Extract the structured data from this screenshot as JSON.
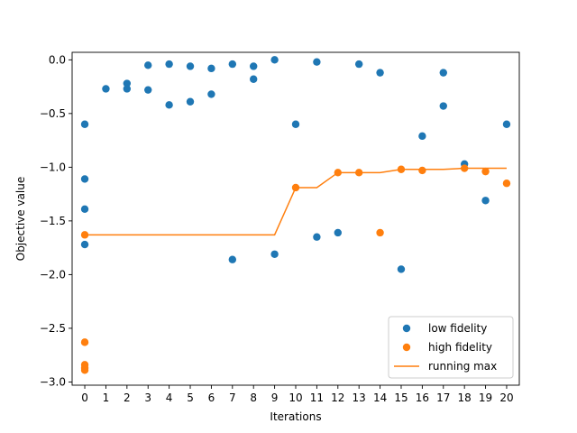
{
  "chart_data": {
    "type": "scatter",
    "xlabel": "Iterations",
    "ylabel": "Objective value",
    "xlim": [
      -0.6,
      20.6
    ],
    "ylim": [
      -3.03,
      0.07
    ],
    "xticks": [
      "0",
      "1",
      "2",
      "3",
      "4",
      "5",
      "6",
      "7",
      "8",
      "9",
      "10",
      "11",
      "12",
      "13",
      "14",
      "15",
      "16",
      "17",
      "18",
      "19",
      "20"
    ],
    "yticks": [
      {
        "value": 0.0,
        "label": "0.0"
      },
      {
        "value": -0.5,
        "label": "−0.5"
      },
      {
        "value": -1.0,
        "label": "−1.0"
      },
      {
        "value": -1.5,
        "label": "−1.5"
      },
      {
        "value": -2.0,
        "label": "−2.0"
      },
      {
        "value": -2.5,
        "label": "−2.5"
      },
      {
        "value": -3.0,
        "label": "−3.0"
      }
    ],
    "grid": false,
    "legend_position": "lower-right",
    "series": [
      {
        "name": "low fidelity",
        "kind": "scatter",
        "color": "#1f77b4",
        "points": [
          [
            0,
            -0.6
          ],
          [
            0,
            -1.11
          ],
          [
            0,
            -1.39
          ],
          [
            0,
            -1.72
          ],
          [
            1,
            -0.27
          ],
          [
            2,
            -0.22
          ],
          [
            2,
            -0.27
          ],
          [
            3,
            -0.05
          ],
          [
            3,
            -0.28
          ],
          [
            4,
            -0.04
          ],
          [
            4,
            -0.42
          ],
          [
            5,
            -0.06
          ],
          [
            5,
            -0.39
          ],
          [
            6,
            -0.08
          ],
          [
            6,
            -0.32
          ],
          [
            7,
            -0.04
          ],
          [
            7,
            -1.86
          ],
          [
            8,
            -0.06
          ],
          [
            8,
            -0.18
          ],
          [
            9,
            0.0
          ],
          [
            9,
            -1.81
          ],
          [
            10,
            -0.6
          ],
          [
            11,
            -0.02
          ],
          [
            11,
            -1.65
          ],
          [
            12,
            -1.61
          ],
          [
            13,
            -0.04
          ],
          [
            14,
            -0.12
          ],
          [
            15,
            -1.95
          ],
          [
            16,
            -0.71
          ],
          [
            17,
            -0.12
          ],
          [
            17,
            -0.43
          ],
          [
            18,
            -0.97
          ],
          [
            19,
            -1.31
          ],
          [
            20,
            -0.6
          ]
        ]
      },
      {
        "name": "high fidelity",
        "kind": "scatter",
        "color": "#ff7f0e",
        "points": [
          [
            0,
            -1.63
          ],
          [
            0,
            -2.63
          ],
          [
            0,
            -2.84
          ],
          [
            0,
            -2.87
          ],
          [
            0,
            -2.89
          ],
          [
            10,
            -1.19
          ],
          [
            12,
            -1.05
          ],
          [
            13,
            -1.05
          ],
          [
            14,
            -1.61
          ],
          [
            15,
            -1.02
          ],
          [
            16,
            -1.03
          ],
          [
            18,
            -1.01
          ],
          [
            19,
            -1.04
          ],
          [
            20,
            -1.15
          ]
        ]
      },
      {
        "name": "running max",
        "kind": "line",
        "color": "#ff7f0e",
        "points": [
          [
            0,
            -1.63
          ],
          [
            9,
            -1.63
          ],
          [
            10,
            -1.19
          ],
          [
            11,
            -1.19
          ],
          [
            12,
            -1.05
          ],
          [
            13,
            -1.05
          ],
          [
            14,
            -1.05
          ],
          [
            15,
            -1.02
          ],
          [
            16,
            -1.02
          ],
          [
            17,
            -1.02
          ],
          [
            18,
            -1.01
          ],
          [
            19,
            -1.01
          ],
          [
            20,
            -1.01
          ]
        ]
      }
    ]
  }
}
